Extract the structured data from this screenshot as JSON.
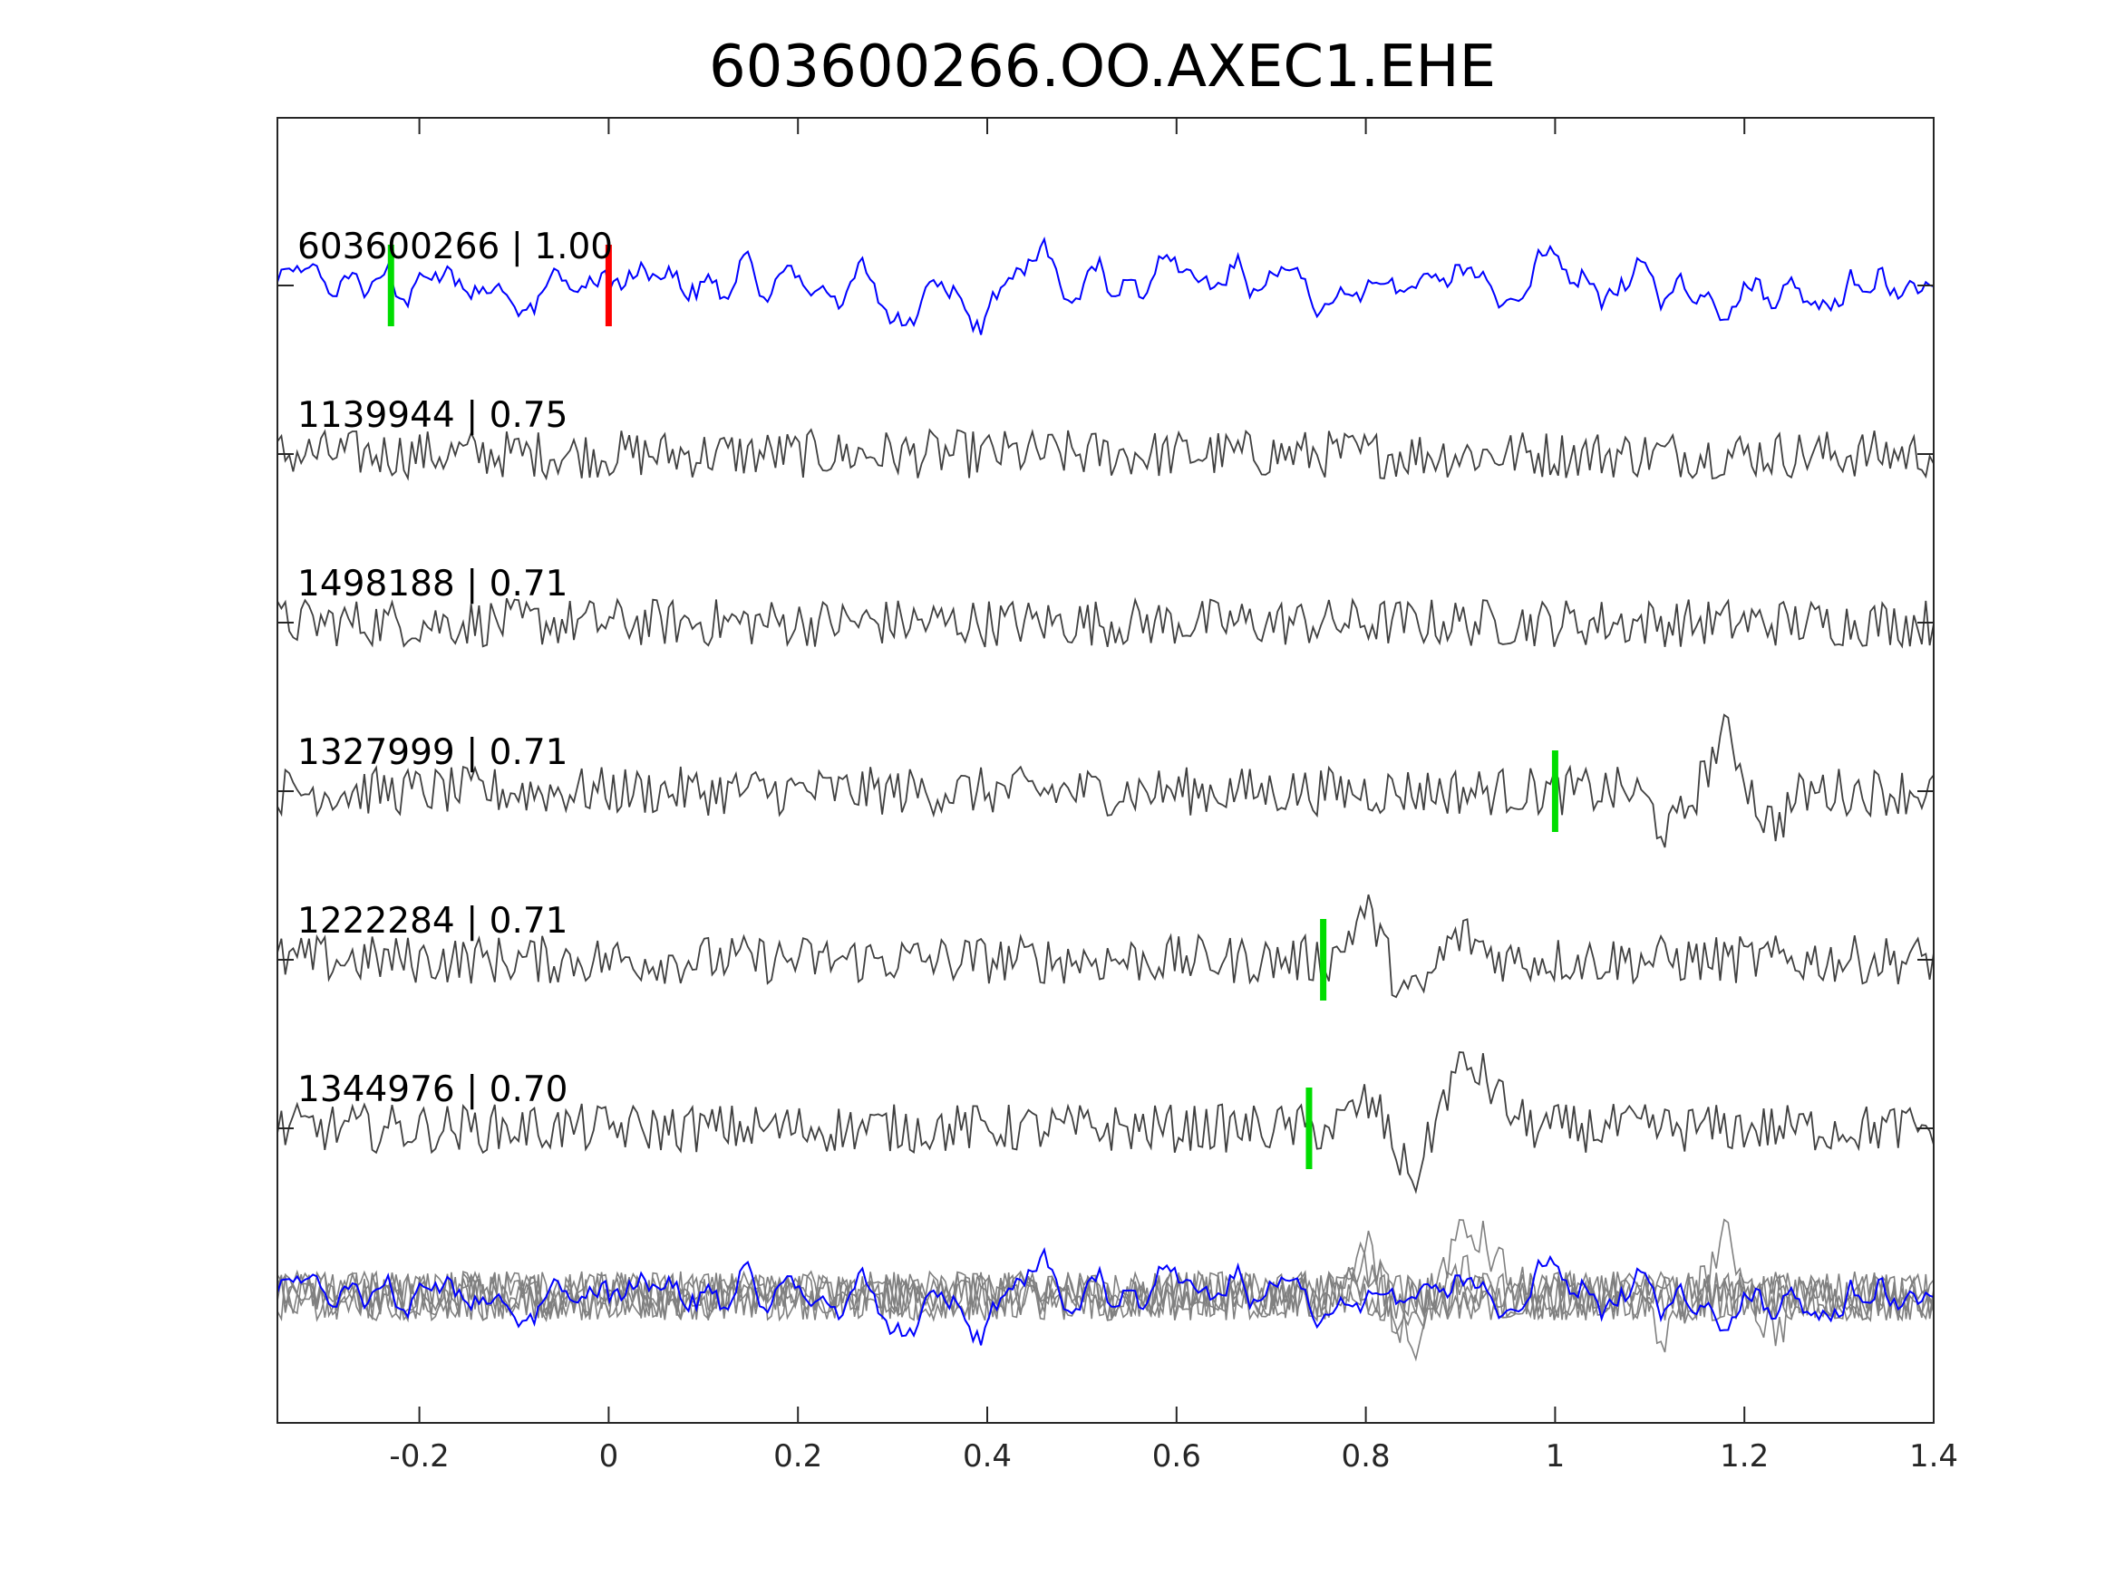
{
  "chart_data": {
    "type": "line",
    "title": "603600266.OO.AXEC1.EHE",
    "xlabel": "",
    "ylabel": "",
    "xlim": [
      -0.35,
      1.4
    ],
    "xticks": [
      -0.2,
      0,
      0.2,
      0.4,
      0.6,
      0.8,
      1,
      1.2,
      1.4
    ],
    "xtick_labels": [
      "-0.2",
      "0",
      "0.2",
      "0.4",
      "0.6",
      "0.8",
      "1",
      "1.2",
      "1.4"
    ],
    "grid": false,
    "colors": {
      "template": "#0000ff",
      "neighbor": "#404040",
      "stack": "#808080",
      "pick_green": "#00dd00",
      "pick_red": "#ff0000"
    },
    "traces": [
      {
        "id": "603600266",
        "cc": "1.00",
        "label": "603600266 | 1.00",
        "color": "#0000ff",
        "picks": [
          {
            "t": -0.23,
            "color": "#00dd00"
          },
          {
            "t": 0.0,
            "color": "#ff0000"
          }
        ]
      },
      {
        "id": "1139944",
        "cc": "0.75",
        "label": "1139944 | 0.75",
        "color": "#404040",
        "picks": []
      },
      {
        "id": "1498188",
        "cc": "0.71",
        "label": "1498188 | 0.71",
        "color": "#404040",
        "picks": []
      },
      {
        "id": "1327999",
        "cc": "0.71",
        "label": "1327999 | 0.71",
        "color": "#404040",
        "picks": [
          {
            "t": 1.0,
            "color": "#00dd00"
          }
        ]
      },
      {
        "id": "1222284",
        "cc": "0.71",
        "label": "1222284 | 0.71",
        "color": "#404040",
        "picks": [
          {
            "t": 0.755,
            "color": "#00dd00"
          }
        ]
      },
      {
        "id": "1344976",
        "cc": "0.70",
        "label": "1344976 | 0.70",
        "color": "#404040",
        "picks": [
          {
            "t": 0.74,
            "color": "#00dd00"
          }
        ]
      }
    ],
    "overlay": "all traces superimposed at bottom"
  }
}
